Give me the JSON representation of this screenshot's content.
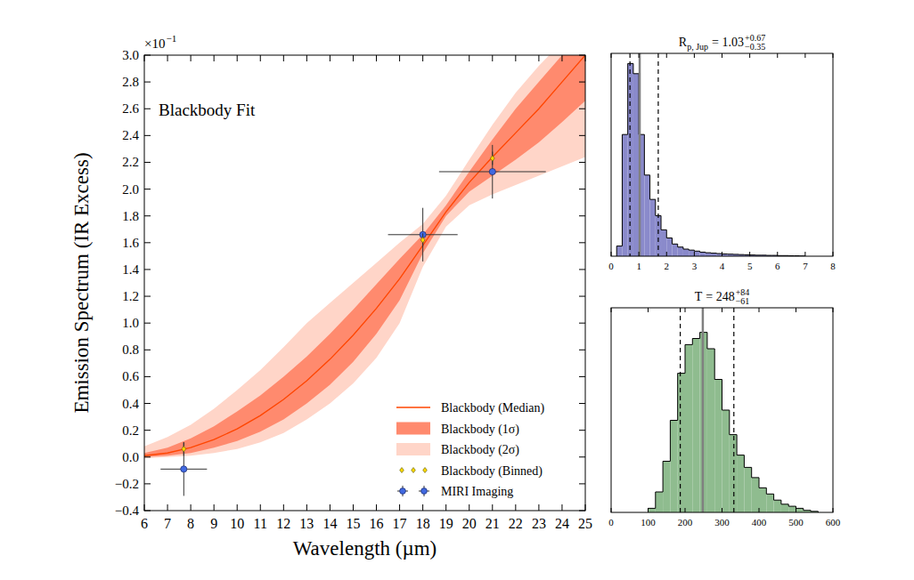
{
  "chart_data": [
    {
      "type": "line",
      "annotation": "Blackbody Fit",
      "x_label": "Wavelength (µm)",
      "y_label": "Emission Spectrum (IR Excess)",
      "y_multiplier": {
        "base": "×10",
        "exponent": "−1"
      },
      "xlim": [
        6,
        25
      ],
      "ylim": [
        -0.4,
        3.0
      ],
      "xticks": [
        6,
        7,
        8,
        9,
        10,
        11,
        12,
        13,
        14,
        15,
        16,
        17,
        18,
        19,
        20,
        21,
        22,
        23,
        24,
        25
      ],
      "yticks": [
        {
          "value": -0.4,
          "label": "−0.4"
        },
        {
          "value": -0.2,
          "label": "−0.2"
        },
        {
          "value": 0,
          "label": "0.0"
        },
        {
          "value": 0.2,
          "label": "0.2"
        },
        {
          "value": 0.4,
          "label": "0.4"
        },
        {
          "value": 0.6,
          "label": "0.6"
        },
        {
          "value": 0.8,
          "label": "0.8"
        },
        {
          "value": 1,
          "label": "1.0"
        },
        {
          "value": 1.2,
          "label": "1.2"
        },
        {
          "value": 1.4,
          "label": "1.4"
        },
        {
          "value": 1.6,
          "label": "1.6"
        },
        {
          "value": 1.8,
          "label": "1.8"
        },
        {
          "value": 2,
          "label": "2.0"
        },
        {
          "value": 2.2,
          "label": "2.2"
        },
        {
          "value": 2.4,
          "label": "2.4"
        },
        {
          "value": 2.6,
          "label": "2.6"
        },
        {
          "value": 2.8,
          "label": "2.8"
        },
        {
          "value": 3,
          "label": "3.0"
        }
      ],
      "legend": "lower right",
      "x": [
        6,
        7,
        8,
        9,
        10,
        11,
        12,
        13,
        14,
        15,
        16,
        17,
        18,
        19,
        20,
        21,
        22,
        23,
        24,
        25
      ],
      "series": [
        {
          "name": "Blackbody (Median)",
          "type": "line",
          "color": "#ff4500",
          "values": [
            0.01,
            0.03,
            0.07,
            0.13,
            0.21,
            0.31,
            0.43,
            0.57,
            0.73,
            0.91,
            1.11,
            1.33,
            1.58,
            1.83,
            2.05,
            2.24,
            2.42,
            2.6,
            2.8,
            3.0
          ]
        },
        {
          "name": "Blackbody (1σ)",
          "type": "band",
          "color": "#ff8a6e",
          "lower": [
            0.0,
            0.01,
            0.03,
            0.07,
            0.12,
            0.19,
            0.28,
            0.4,
            0.54,
            0.71,
            0.92,
            1.17,
            1.52,
            1.8,
            1.98,
            2.1,
            2.22,
            2.35,
            2.5,
            2.66
          ],
          "upper": [
            0.03,
            0.07,
            0.14,
            0.23,
            0.34,
            0.46,
            0.6,
            0.75,
            0.92,
            1.1,
            1.29,
            1.48,
            1.66,
            1.88,
            2.13,
            2.37,
            2.6,
            2.8,
            3.0,
            3.2
          ]
        },
        {
          "name": "Blackbody (2σ)",
          "type": "band",
          "color": "#ffd5c8",
          "lower": [
            -0.01,
            0.0,
            0.01,
            0.03,
            0.06,
            0.11,
            0.18,
            0.28,
            0.4,
            0.55,
            0.74,
            1.0,
            1.42,
            1.72,
            1.88,
            1.96,
            2.03,
            2.1,
            2.17,
            2.24
          ],
          "upper": [
            0.08,
            0.15,
            0.24,
            0.36,
            0.5,
            0.65,
            0.82,
            1.0,
            1.15,
            1.3,
            1.45,
            1.6,
            1.74,
            1.95,
            2.22,
            2.48,
            2.72,
            2.92,
            3.1,
            3.3
          ]
        },
        {
          "name": "Blackbody (Binned)",
          "type": "scatter",
          "marker": "diamond",
          "color": "#ffd700",
          "x": [
            7.7,
            18,
            21
          ],
          "values": [
            0.06,
            1.62,
            2.23
          ],
          "y_error": [
            0.05,
            0.05,
            0.05
          ]
        },
        {
          "name": "MIRI Imaging",
          "type": "scatter",
          "marker": "circle",
          "color": "#4169e1",
          "x": [
            7.7,
            18,
            21
          ],
          "values": [
            -0.09,
            1.66,
            2.13
          ],
          "x_error": [
            1.0,
            1.5,
            2.3
          ],
          "y_error": [
            0.2,
            0.2,
            0.2
          ]
        }
      ]
    },
    {
      "type": "histogram",
      "title": {
        "symbol": "R",
        "subscript": "p, Jup",
        "text": "= 1.03",
        "upper": "+0.67",
        "lower": "−0.35"
      },
      "color": "#8a8acb",
      "bins": [
        0.2,
        0.4,
        0.6,
        0.8,
        1.0,
        1.2,
        1.4,
        1.6,
        1.8,
        2.0,
        2.2,
        2.4,
        2.6,
        2.8,
        3.0,
        3.2,
        3.4,
        3.6,
        3.8,
        4.0,
        4.2,
        4.4,
        4.6,
        4.8,
        5.0,
        5.2,
        5.4,
        5.6,
        5.8,
        6.0,
        6.2,
        6.4,
        6.6,
        6.8,
        7.0
      ],
      "counts": [
        5,
        60,
        95,
        90,
        60,
        40,
        28,
        20,
        13,
        9,
        6,
        4.5,
        3.5,
        3,
        2.5,
        2,
        1.7,
        1.5,
        1.3,
        1.1,
        1,
        0.9,
        0.8,
        0.7,
        0.6,
        0.5,
        0.5,
        0.4,
        0.4,
        0.3,
        0.3,
        0.2,
        0.2,
        0.1
      ],
      "median": 1.03,
      "quantiles": [
        0.68,
        1.7
      ],
      "xlim": [
        0,
        8
      ],
      "xticks": [
        0,
        1,
        2,
        3,
        4,
        5,
        6,
        7,
        8
      ],
      "ylim": [
        0,
        100
      ],
      "tick_labels": "x"
    },
    {
      "type": "histogram",
      "title": {
        "symbol": "T",
        "text": "= 248",
        "upper": "+84",
        "lower": "−61"
      },
      "color": "#8fbc8f",
      "bins": [
        100,
        120,
        140,
        160,
        180,
        200,
        220,
        240,
        260,
        280,
        300,
        320,
        340,
        360,
        380,
        400,
        420,
        440,
        460,
        480,
        500,
        520,
        540,
        560
      ],
      "counts": [
        2,
        10,
        25,
        45,
        68,
        82,
        85,
        88,
        80,
        65,
        50,
        38,
        28,
        22,
        17,
        12,
        9,
        6,
        4,
        3,
        2,
        1,
        0.5
      ],
      "median": 248,
      "quantiles": [
        187,
        332
      ],
      "xlim": [
        0,
        600
      ],
      "xticks": [
        0,
        100,
        200,
        300,
        400,
        500,
        600
      ],
      "ylim": [
        0,
        100
      ],
      "tick_labels": "x"
    }
  ]
}
